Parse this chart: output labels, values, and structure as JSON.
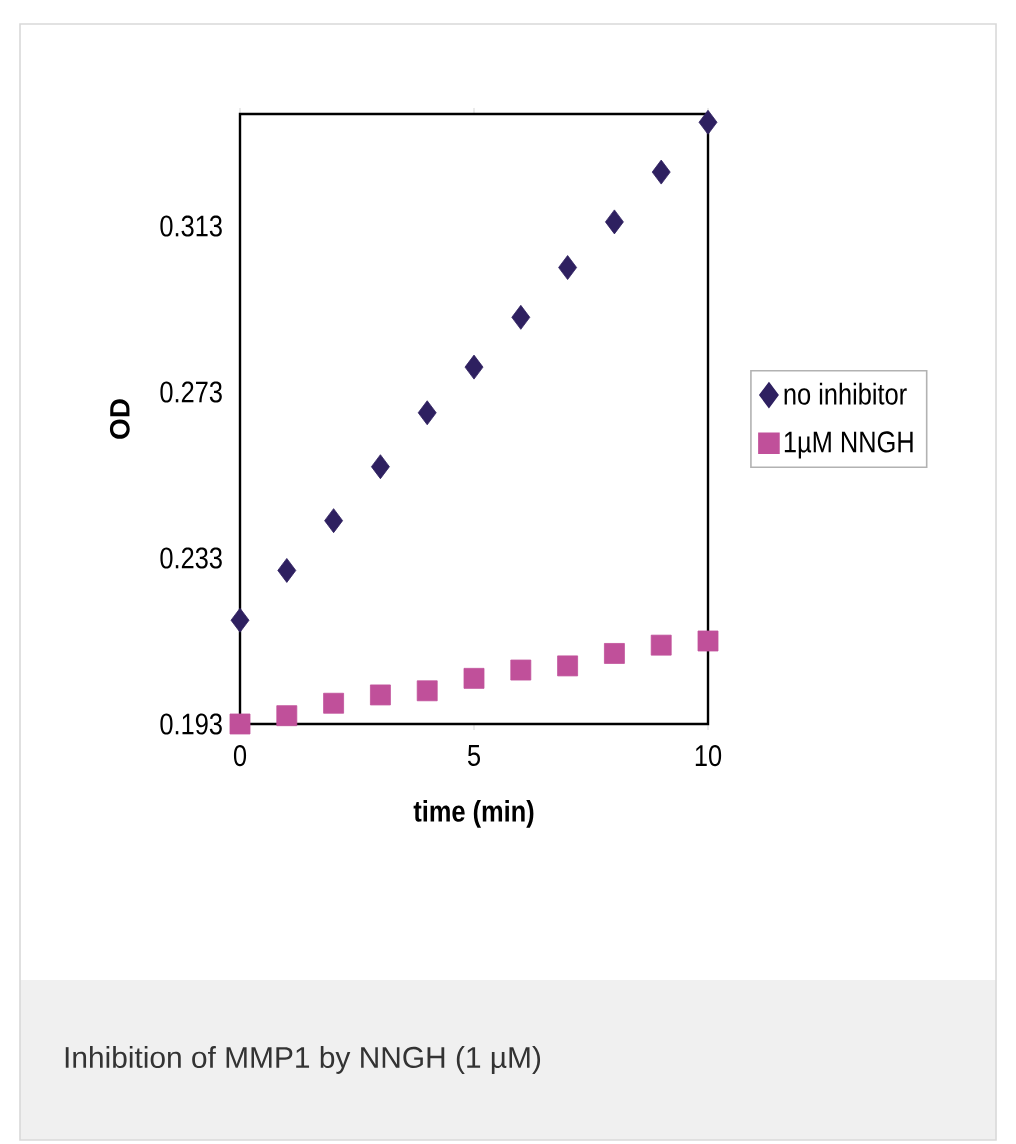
{
  "chart_data": {
    "type": "scatter",
    "xlabel": "time (min)",
    "ylabel": "OD",
    "annotations": [
      "Inhibition of MMP1 by NNGH (1 µM)"
    ],
    "x": [
      0,
      1,
      2,
      3,
      4,
      5,
      6,
      7,
      8,
      9,
      10
    ],
    "series": [
      {
        "name": "no inhibitor",
        "color": "#2e2060",
        "marker": "diamond",
        "values": [
          0.218,
          0.23,
          0.242,
          0.255,
          0.268,
          0.279,
          0.291,
          0.303,
          0.314,
          0.326,
          0.338
        ]
      },
      {
        "name": "1µM NNGH",
        "color": "#c0509a",
        "marker": "square",
        "values": [
          0.193,
          0.195,
          0.198,
          0.2,
          0.201,
          0.204,
          0.206,
          0.207,
          0.21,
          0.212,
          0.213
        ]
      }
    ],
    "xlim": [
      0,
      10
    ],
    "ylim": [
      0.193,
      0.34
    ],
    "xticks": [
      0,
      5,
      10
    ],
    "yticks": [
      0.193,
      0.233,
      0.273,
      0.313
    ],
    "grid": false,
    "legend": "right"
  }
}
